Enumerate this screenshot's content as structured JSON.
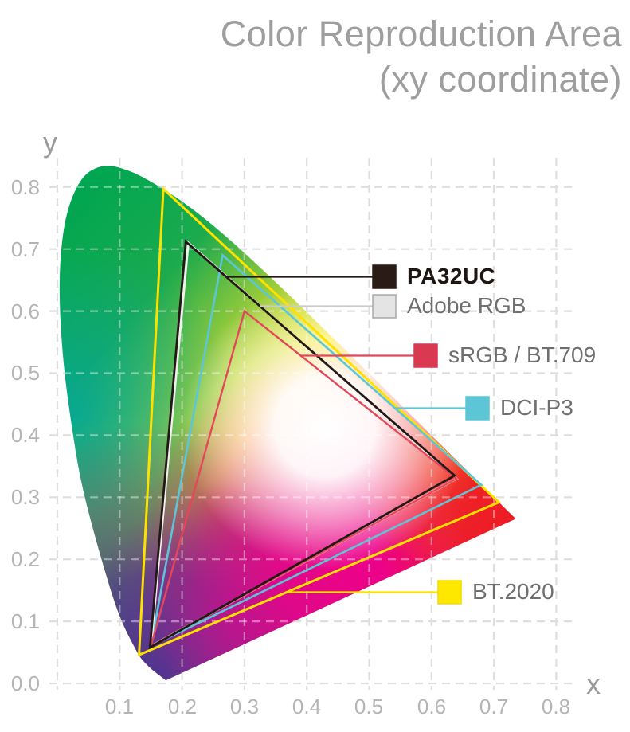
{
  "title": {
    "line1": "Color Reproduction Area",
    "line2": "(xy coordinate)"
  },
  "axes": {
    "x_label": "x",
    "y_label": "y",
    "x_ticks": [
      "0.1",
      "0.2",
      "0.3",
      "0.4",
      "0.5",
      "0.6",
      "0.7",
      "0.8"
    ],
    "y_ticks": [
      "0.8",
      "0.7",
      "0.6",
      "0.5",
      "0.4",
      "0.3",
      "0.2",
      "0.1",
      "0.0"
    ]
  },
  "legend": {
    "items": [
      {
        "id": "pa32uc",
        "label": "PA32UC",
        "swatch_color": "#2a1b16",
        "swatch_border": "#2a1b16",
        "callout_color": "#231815",
        "bold": true
      },
      {
        "id": "adobe-rgb",
        "label": "Adobe RGB",
        "swatch_color": "#e4e4e4",
        "swatch_border": "#a8a8a8",
        "callout_color": "#cbcbcb",
        "bold": false
      },
      {
        "id": "srgb-bt709",
        "label": "sRGB / BT.709",
        "swatch_color": "#d93a52",
        "swatch_border": "#d93a52",
        "callout_color": "#e2475a",
        "bold": false
      },
      {
        "id": "dci-p3",
        "label": "DCI-P3",
        "swatch_color": "#5dc6d6",
        "swatch_border": "#5dc6d6",
        "callout_color": "#5dc6d6",
        "bold": false
      },
      {
        "id": "bt2020",
        "label": "BT.2020",
        "swatch_color": "#ffe800",
        "swatch_border": "#f2dc00",
        "callout_color": "#ffe100",
        "bold": false
      }
    ]
  },
  "chart_data": {
    "type": "area",
    "subtype": "cie-1931-chromaticity-gamut-comparison",
    "title": "Color Reproduction Area (xy coordinate)",
    "xlabel": "x",
    "ylabel": "y",
    "xlim": [
      0,
      0.85
    ],
    "ylim": [
      0,
      0.85
    ],
    "grid": true,
    "series": [
      {
        "id": "pa32uc",
        "name": "PA32UC",
        "color": "#231815",
        "points": [
          [
            0.637,
            0.335
          ],
          [
            0.206,
            0.712
          ],
          [
            0.1485,
            0.058
          ]
        ]
      },
      {
        "id": "adobe-rgb",
        "name": "Adobe RGB",
        "color": "#f0f0ee",
        "points": [
          [
            0.64,
            0.33
          ],
          [
            0.21,
            0.71
          ],
          [
            0.15,
            0.06
          ]
        ]
      },
      {
        "id": "srgb-bt709",
        "name": "sRGB / BT.709",
        "color": "#e2475a",
        "points": [
          [
            0.64,
            0.33
          ],
          [
            0.3,
            0.6
          ],
          [
            0.15,
            0.06
          ]
        ]
      },
      {
        "id": "dci-p3",
        "name": "DCI-P3",
        "color": "#5dc6d6",
        "points": [
          [
            0.68,
            0.32
          ],
          [
            0.265,
            0.69
          ],
          [
            0.15,
            0.06
          ]
        ]
      },
      {
        "id": "bt2020",
        "name": "BT.2020",
        "color": "#ffe100",
        "points": [
          [
            0.708,
            0.292
          ],
          [
            0.17,
            0.797
          ],
          [
            0.131,
            0.046
          ]
        ]
      }
    ],
    "spectral_locus": [
      [
        0.1741,
        0.005
      ],
      [
        0.144,
        0.0297
      ],
      [
        0.1241,
        0.0578
      ],
      [
        0.0913,
        0.1327
      ],
      [
        0.0454,
        0.295
      ],
      [
        0.0235,
        0.4127
      ],
      [
        0.0082,
        0.5384
      ],
      [
        0.0039,
        0.6548
      ],
      [
        0.0139,
        0.7502
      ],
      [
        0.0389,
        0.812
      ],
      [
        0.0743,
        0.8338
      ],
      [
        0.1142,
        0.8262
      ],
      [
        0.1547,
        0.8059
      ],
      [
        0.1929,
        0.7816
      ],
      [
        0.2296,
        0.7543
      ],
      [
        0.2658,
        0.7243
      ],
      [
        0.3016,
        0.6923
      ],
      [
        0.3373,
        0.6588
      ],
      [
        0.3731,
        0.6245
      ],
      [
        0.4087,
        0.5896
      ],
      [
        0.4441,
        0.5547
      ],
      [
        0.4788,
        0.5202
      ],
      [
        0.5125,
        0.4866
      ],
      [
        0.5448,
        0.4544
      ],
      [
        0.5752,
        0.4242
      ],
      [
        0.6029,
        0.3965
      ],
      [
        0.627,
        0.3725
      ],
      [
        0.6482,
        0.3514
      ],
      [
        0.6658,
        0.334
      ],
      [
        0.6915,
        0.3083
      ],
      [
        0.714,
        0.2859
      ],
      [
        0.726,
        0.274
      ],
      [
        0.7347,
        0.2653
      ]
    ]
  }
}
